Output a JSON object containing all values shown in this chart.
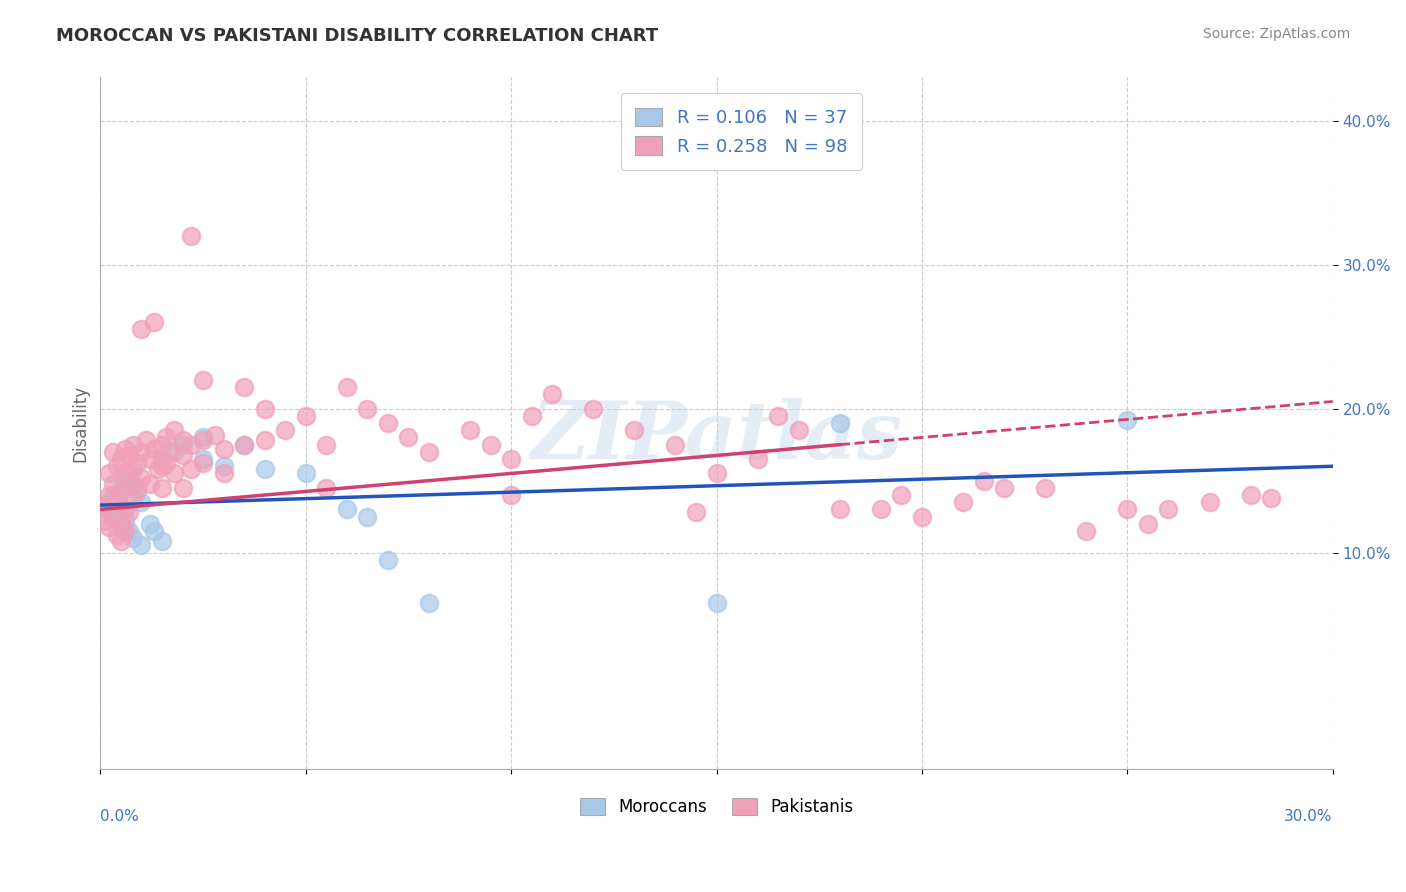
{
  "title": "MOROCCAN VS PAKISTANI DISABILITY CORRELATION CHART",
  "source": "Source: ZipAtlas.com",
  "ylabel": "Disability",
  "moroccan_color": "#a8c8e8",
  "pakistani_color": "#f0a0b8",
  "moroccan_line_color": "#2255bb",
  "pakistani_line_color": "#d04070",
  "moroccan_R": 0.106,
  "moroccan_N": 37,
  "pakistani_R": 0.258,
  "pakistani_N": 98,
  "xlim": [
    0.0,
    0.3
  ],
  "ylim": [
    -0.05,
    0.43
  ],
  "watermark": "ZIPatlas",
  "moroccan_scatter": [
    [
      0.001,
      0.13
    ],
    [
      0.002,
      0.135
    ],
    [
      0.002,
      0.128
    ],
    [
      0.003,
      0.14
    ],
    [
      0.003,
      0.125
    ],
    [
      0.004,
      0.138
    ],
    [
      0.004,
      0.132
    ],
    [
      0.005,
      0.145
    ],
    [
      0.005,
      0.118
    ],
    [
      0.006,
      0.15
    ],
    [
      0.006,
      0.122
    ],
    [
      0.007,
      0.155
    ],
    [
      0.007,
      0.115
    ],
    [
      0.008,
      0.148
    ],
    [
      0.008,
      0.11
    ],
    [
      0.009,
      0.142
    ],
    [
      0.01,
      0.135
    ],
    [
      0.01,
      0.105
    ],
    [
      0.012,
      0.12
    ],
    [
      0.013,
      0.115
    ],
    [
      0.015,
      0.165
    ],
    [
      0.015,
      0.108
    ],
    [
      0.018,
      0.17
    ],
    [
      0.02,
      0.175
    ],
    [
      0.025,
      0.18
    ],
    [
      0.025,
      0.165
    ],
    [
      0.03,
      0.16
    ],
    [
      0.035,
      0.175
    ],
    [
      0.04,
      0.158
    ],
    [
      0.05,
      0.155
    ],
    [
      0.06,
      0.13
    ],
    [
      0.065,
      0.125
    ],
    [
      0.07,
      0.095
    ],
    [
      0.08,
      0.065
    ],
    [
      0.15,
      0.065
    ],
    [
      0.18,
      0.19
    ],
    [
      0.25,
      0.192
    ]
  ],
  "pakistani_scatter": [
    [
      0.001,
      0.132
    ],
    [
      0.001,
      0.122
    ],
    [
      0.002,
      0.14
    ],
    [
      0.002,
      0.118
    ],
    [
      0.002,
      0.155
    ],
    [
      0.003,
      0.148
    ],
    [
      0.003,
      0.125
    ],
    [
      0.003,
      0.17
    ],
    [
      0.004,
      0.16
    ],
    [
      0.004,
      0.135
    ],
    [
      0.004,
      0.112
    ],
    [
      0.005,
      0.165
    ],
    [
      0.005,
      0.142
    ],
    [
      0.005,
      0.12
    ],
    [
      0.005,
      0.108
    ],
    [
      0.006,
      0.172
    ],
    [
      0.006,
      0.155
    ],
    [
      0.006,
      0.13
    ],
    [
      0.006,
      0.115
    ],
    [
      0.007,
      0.168
    ],
    [
      0.007,
      0.148
    ],
    [
      0.007,
      0.128
    ],
    [
      0.008,
      0.175
    ],
    [
      0.008,
      0.158
    ],
    [
      0.008,
      0.138
    ],
    [
      0.009,
      0.162
    ],
    [
      0.009,
      0.145
    ],
    [
      0.01,
      0.255
    ],
    [
      0.01,
      0.17
    ],
    [
      0.01,
      0.152
    ],
    [
      0.011,
      0.178
    ],
    [
      0.012,
      0.165
    ],
    [
      0.012,
      0.148
    ],
    [
      0.013,
      0.26
    ],
    [
      0.013,
      0.172
    ],
    [
      0.014,
      0.158
    ],
    [
      0.015,
      0.175
    ],
    [
      0.015,
      0.16
    ],
    [
      0.015,
      0.145
    ],
    [
      0.016,
      0.18
    ],
    [
      0.016,
      0.162
    ],
    [
      0.017,
      0.17
    ],
    [
      0.018,
      0.185
    ],
    [
      0.018,
      0.155
    ],
    [
      0.02,
      0.178
    ],
    [
      0.02,
      0.168
    ],
    [
      0.02,
      0.145
    ],
    [
      0.022,
      0.32
    ],
    [
      0.022,
      0.175
    ],
    [
      0.022,
      0.158
    ],
    [
      0.025,
      0.22
    ],
    [
      0.025,
      0.178
    ],
    [
      0.025,
      0.162
    ],
    [
      0.028,
      0.182
    ],
    [
      0.03,
      0.172
    ],
    [
      0.03,
      0.155
    ],
    [
      0.035,
      0.215
    ],
    [
      0.035,
      0.175
    ],
    [
      0.04,
      0.2
    ],
    [
      0.04,
      0.178
    ],
    [
      0.045,
      0.185
    ],
    [
      0.05,
      0.195
    ],
    [
      0.055,
      0.175
    ],
    [
      0.06,
      0.215
    ],
    [
      0.065,
      0.2
    ],
    [
      0.07,
      0.19
    ],
    [
      0.075,
      0.18
    ],
    [
      0.08,
      0.17
    ],
    [
      0.09,
      0.185
    ],
    [
      0.095,
      0.175
    ],
    [
      0.1,
      0.165
    ],
    [
      0.105,
      0.195
    ],
    [
      0.11,
      0.21
    ],
    [
      0.12,
      0.2
    ],
    [
      0.13,
      0.185
    ],
    [
      0.14,
      0.175
    ],
    [
      0.15,
      0.155
    ],
    [
      0.16,
      0.165
    ],
    [
      0.165,
      0.195
    ],
    [
      0.17,
      0.185
    ],
    [
      0.18,
      0.13
    ],
    [
      0.19,
      0.13
    ],
    [
      0.2,
      0.125
    ],
    [
      0.21,
      0.135
    ],
    [
      0.22,
      0.145
    ],
    [
      0.23,
      0.145
    ],
    [
      0.24,
      0.115
    ],
    [
      0.25,
      0.13
    ],
    [
      0.255,
      0.12
    ],
    [
      0.26,
      0.13
    ],
    [
      0.27,
      0.135
    ],
    [
      0.28,
      0.14
    ],
    [
      0.285,
      0.138
    ],
    [
      0.055,
      0.145
    ],
    [
      0.1,
      0.14
    ],
    [
      0.145,
      0.128
    ],
    [
      0.195,
      0.14
    ],
    [
      0.215,
      0.15
    ]
  ]
}
